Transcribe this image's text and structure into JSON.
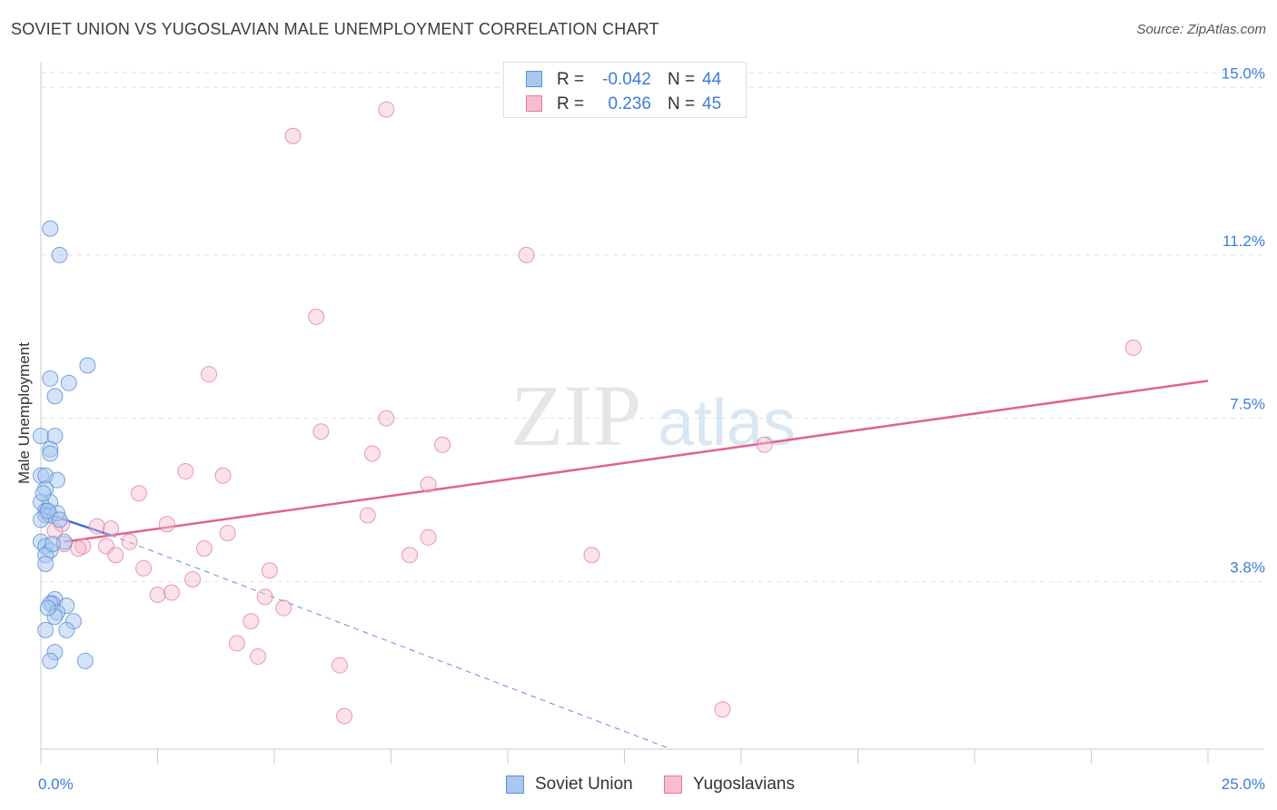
{
  "title": "SOVIET UNION VS YUGOSLAVIAN MALE UNEMPLOYMENT CORRELATION CHART",
  "source": "Source: ZipAtlas.com",
  "watermark": {
    "zip": "ZIP",
    "atlas": "atlas"
  },
  "legend": {
    "rows": [
      {
        "r_label": "R =",
        "r_value": "-0.042",
        "n_label": "N =",
        "n_value": "44"
      },
      {
        "r_label": "R =",
        "r_value": "0.236",
        "n_label": "N =",
        "n_value": "45"
      }
    ]
  },
  "colors": {
    "soviet_fill": "#a9c8f0",
    "soviet_stroke": "#5b8fd6",
    "soviet_line": "#3b6fd4",
    "yugo_fill": "#f6bcd0",
    "yugo_stroke": "#e07aa0",
    "yugo_line": "#e0638f",
    "tick_label": "#3b7dd8",
    "grid": "#e2e2e2"
  },
  "chart_data": {
    "type": "scatter",
    "title": "SOVIET UNION VS YUGOSLAVIAN MALE UNEMPLOYMENT CORRELATION CHART",
    "xlabel": "",
    "ylabel": "Male Unemployment",
    "xlim": [
      0,
      25
    ],
    "ylim": [
      0,
      15.5
    ],
    "x_tick_labels": [
      "0.0%",
      "25.0%"
    ],
    "y_ticks": [
      3.8,
      7.5,
      11.2,
      15.0
    ],
    "y_tick_labels": [
      "3.8%",
      "7.5%",
      "11.2%",
      "15.0%"
    ],
    "grid": true,
    "legend_position": "bottom-center",
    "series": [
      {
        "name": "Soviet Union",
        "points": [
          [
            0.2,
            11.8
          ],
          [
            0.4,
            11.2
          ],
          [
            0.2,
            8.4
          ],
          [
            0.6,
            8.3
          ],
          [
            0.3,
            8.0
          ],
          [
            1.0,
            8.7
          ],
          [
            0.0,
            7.1
          ],
          [
            0.3,
            7.1
          ],
          [
            0.2,
            6.8
          ],
          [
            0.2,
            6.7
          ],
          [
            0.0,
            6.2
          ],
          [
            0.1,
            6.2
          ],
          [
            0.35,
            6.1
          ],
          [
            0.1,
            5.9
          ],
          [
            0.2,
            5.6
          ],
          [
            0.0,
            5.6
          ],
          [
            0.1,
            5.4
          ],
          [
            0.1,
            5.3
          ],
          [
            0.2,
            5.3
          ],
          [
            0.35,
            5.35
          ],
          [
            0.0,
            5.2
          ],
          [
            0.5,
            4.7
          ],
          [
            0.0,
            4.7
          ],
          [
            0.1,
            4.6
          ],
          [
            0.2,
            4.5
          ],
          [
            0.1,
            4.4
          ],
          [
            0.1,
            4.2
          ],
          [
            0.3,
            3.4
          ],
          [
            0.25,
            3.3
          ],
          [
            0.2,
            3.3
          ],
          [
            0.55,
            3.25
          ],
          [
            0.35,
            3.1
          ],
          [
            0.3,
            3.0
          ],
          [
            0.7,
            2.9
          ],
          [
            0.1,
            2.7
          ],
          [
            0.55,
            2.7
          ],
          [
            0.3,
            2.2
          ],
          [
            0.2,
            2.0
          ],
          [
            0.95,
            2.0
          ],
          [
            0.15,
            5.4
          ],
          [
            0.05,
            5.8
          ],
          [
            0.25,
            4.65
          ],
          [
            0.4,
            5.2
          ],
          [
            0.15,
            3.2
          ]
        ],
        "trend": {
          "x": [
            0,
            1.5
          ],
          "y": [
            5.38,
            4.85
          ]
        },
        "trend_extension": {
          "x": [
            1.5,
            13.5
          ],
          "y": [
            4.85,
            0.0
          ]
        }
      },
      {
        "name": "Yugoslavians",
        "points": [
          [
            7.4,
            14.5
          ],
          [
            5.4,
            13.9
          ],
          [
            10.4,
            11.2
          ],
          [
            5.9,
            9.8
          ],
          [
            3.6,
            8.5
          ],
          [
            23.4,
            9.1
          ],
          [
            7.4,
            7.5
          ],
          [
            6.0,
            7.2
          ],
          [
            8.6,
            6.9
          ],
          [
            7.1,
            6.7
          ],
          [
            15.5,
            6.9
          ],
          [
            3.1,
            6.3
          ],
          [
            3.9,
            6.2
          ],
          [
            8.3,
            6.0
          ],
          [
            2.1,
            5.8
          ],
          [
            7.0,
            5.3
          ],
          [
            2.7,
            5.1
          ],
          [
            1.2,
            5.05
          ],
          [
            0.45,
            5.1
          ],
          [
            4.0,
            4.9
          ],
          [
            8.3,
            4.8
          ],
          [
            1.9,
            4.7
          ],
          [
            0.5,
            4.65
          ],
          [
            1.4,
            4.6
          ],
          [
            0.9,
            4.6
          ],
          [
            3.5,
            4.55
          ],
          [
            1.6,
            4.4
          ],
          [
            7.9,
            4.4
          ],
          [
            11.8,
            4.4
          ],
          [
            2.2,
            4.1
          ],
          [
            4.9,
            4.05
          ],
          [
            3.25,
            3.85
          ],
          [
            2.8,
            3.55
          ],
          [
            2.5,
            3.5
          ],
          [
            4.8,
            3.45
          ],
          [
            5.2,
            3.2
          ],
          [
            4.5,
            2.9
          ],
          [
            4.2,
            2.4
          ],
          [
            4.65,
            2.1
          ],
          [
            6.4,
            1.9
          ],
          [
            14.6,
            0.9
          ],
          [
            6.5,
            0.75
          ],
          [
            0.3,
            4.95
          ],
          [
            1.5,
            5.0
          ],
          [
            0.8,
            4.55
          ]
        ],
        "trend": {
          "x": [
            0.5,
            25
          ],
          "y": [
            4.7,
            8.35
          ]
        }
      }
    ]
  }
}
